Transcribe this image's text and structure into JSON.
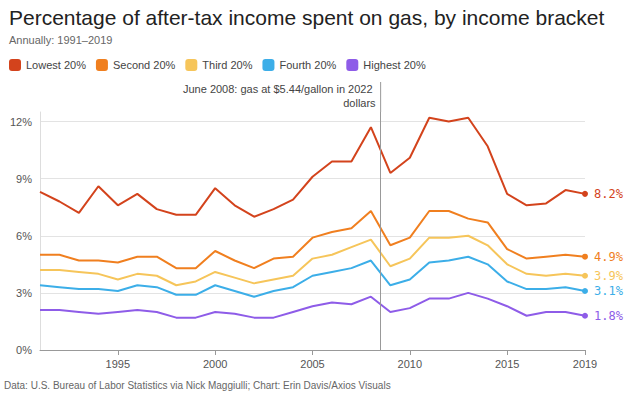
{
  "chart_data": {
    "type": "line",
    "title": "Percentage of after-tax income spent on gas, by income bracket",
    "subtitle": "Annually: 1991–2019",
    "source": "Data: U.S. Bureau of Labor Statistics via Nick Maggiulli; Chart: Erin Davis/Axios Visuals",
    "x": [
      1991,
      1992,
      1993,
      1994,
      1995,
      1996,
      1997,
      1998,
      1999,
      2000,
      2001,
      2002,
      2003,
      2004,
      2005,
      2006,
      2007,
      2008,
      2009,
      2010,
      2011,
      2012,
      2013,
      2014,
      2015,
      2016,
      2017,
      2018,
      2019
    ],
    "xlim": [
      1991,
      2019
    ],
    "xticks": [
      1995,
      2000,
      2005,
      2010,
      2015,
      2019
    ],
    "ylim": [
      0,
      12.5
    ],
    "yticks": [
      {
        "value": 0,
        "label": "0%"
      },
      {
        "value": 3,
        "label": "3%"
      },
      {
        "value": 6,
        "label": "6%"
      },
      {
        "value": 9,
        "label": "9%"
      },
      {
        "value": 12,
        "label": "12%"
      }
    ],
    "grid": true,
    "legend": "top-left",
    "annotations": [
      {
        "x": 2008.5,
        "text": "June 2008: gas at $5.44/gallon in 2022 dollars"
      }
    ],
    "series": [
      {
        "name": "Lowest 20%",
        "color": "#d3431c",
        "values": [
          8.3,
          7.8,
          7.2,
          8.6,
          7.6,
          8.2,
          7.4,
          7.1,
          7.1,
          8.5,
          7.6,
          7.0,
          7.4,
          7.9,
          9.1,
          9.9,
          9.9,
          11.7,
          9.3,
          10.1,
          12.2,
          12.0,
          12.2,
          10.7,
          8.2,
          7.6,
          7.7,
          8.4,
          8.2
        ],
        "value_labels": [
          null,
          null,
          null,
          null,
          null,
          null,
          null,
          null,
          null,
          null,
          null,
          null,
          null,
          null,
          null,
          null,
          null,
          null,
          null,
          null,
          null,
          null,
          null,
          null,
          null,
          null,
          null,
          null,
          "8.2%"
        ]
      },
      {
        "name": "Second 20%",
        "color": "#f07f1f",
        "values": [
          5.0,
          5.0,
          4.7,
          4.7,
          4.6,
          4.9,
          4.9,
          4.3,
          4.3,
          5.2,
          4.7,
          4.3,
          4.8,
          4.9,
          5.9,
          6.2,
          6.4,
          7.3,
          5.5,
          5.9,
          7.3,
          7.3,
          6.9,
          6.7,
          5.3,
          4.8,
          4.9,
          5.0,
          4.9
        ],
        "value_labels": [
          null,
          null,
          null,
          null,
          null,
          null,
          null,
          null,
          null,
          null,
          null,
          null,
          null,
          null,
          null,
          null,
          null,
          null,
          null,
          null,
          null,
          null,
          null,
          null,
          null,
          null,
          null,
          null,
          "4.9%"
        ]
      },
      {
        "name": "Third 20%",
        "color": "#f6c55a",
        "values": [
          4.2,
          4.2,
          4.1,
          4.0,
          3.7,
          4.0,
          3.9,
          3.4,
          3.6,
          4.1,
          3.8,
          3.5,
          3.7,
          3.9,
          4.8,
          5.0,
          5.4,
          5.8,
          4.4,
          4.8,
          5.9,
          5.9,
          6.0,
          5.5,
          4.5,
          4.0,
          3.9,
          4.0,
          3.9
        ],
        "value_labels": [
          null,
          null,
          null,
          null,
          null,
          null,
          null,
          null,
          null,
          null,
          null,
          null,
          null,
          null,
          null,
          null,
          null,
          null,
          null,
          null,
          null,
          null,
          null,
          null,
          null,
          null,
          null,
          null,
          "3.9%"
        ]
      },
      {
        "name": "Fourth 20%",
        "color": "#3caee8",
        "values": [
          3.4,
          3.3,
          3.2,
          3.2,
          3.1,
          3.4,
          3.3,
          2.9,
          2.9,
          3.4,
          3.1,
          2.8,
          3.1,
          3.3,
          3.9,
          4.1,
          4.3,
          4.7,
          3.4,
          3.7,
          4.6,
          4.7,
          4.9,
          4.5,
          3.6,
          3.2,
          3.2,
          3.3,
          3.1
        ],
        "value_labels": [
          null,
          null,
          null,
          null,
          null,
          null,
          null,
          null,
          null,
          null,
          null,
          null,
          null,
          null,
          null,
          null,
          null,
          null,
          null,
          null,
          null,
          null,
          null,
          null,
          null,
          null,
          null,
          null,
          "3.1%"
        ]
      },
      {
        "name": "Highest 20%",
        "color": "#8e5ce8",
        "values": [
          2.1,
          2.1,
          2.0,
          1.9,
          2.0,
          2.1,
          2.0,
          1.7,
          1.7,
          2.0,
          1.9,
          1.7,
          1.7,
          2.0,
          2.3,
          2.5,
          2.4,
          2.8,
          2.0,
          2.2,
          2.7,
          2.7,
          3.0,
          2.7,
          2.3,
          1.8,
          2.0,
          2.0,
          1.8
        ],
        "value_labels": [
          null,
          null,
          null,
          null,
          null,
          null,
          null,
          null,
          null,
          null,
          null,
          null,
          null,
          null,
          null,
          null,
          null,
          null,
          null,
          null,
          null,
          null,
          null,
          null,
          null,
          null,
          null,
          null,
          "1.8%"
        ]
      }
    ]
  }
}
